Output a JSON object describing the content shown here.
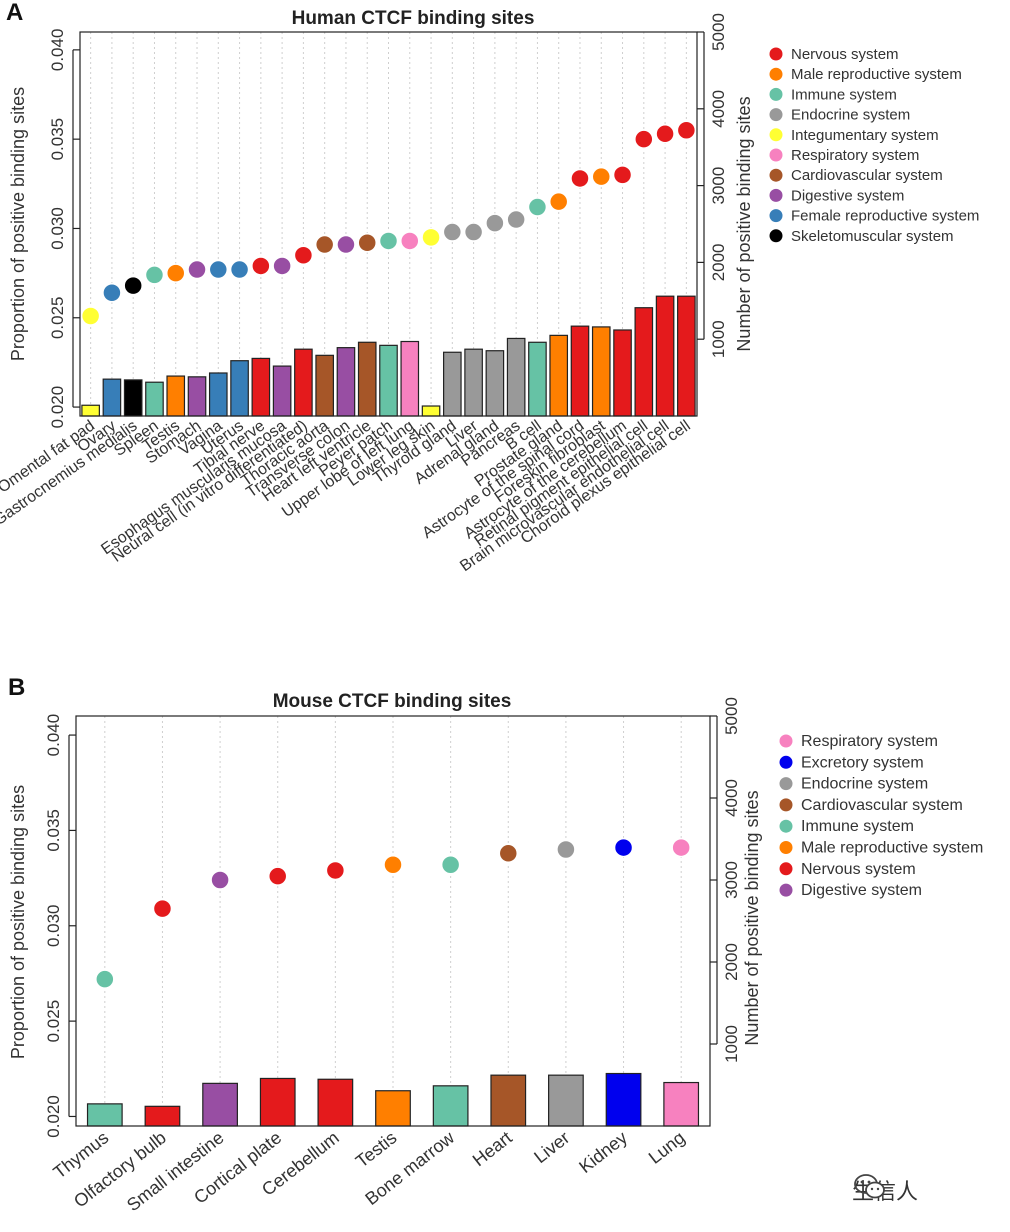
{
  "chart_data": [
    {
      "type": "scatter+bar",
      "panel_label": "A",
      "title": "Human CTCF binding sites",
      "ylabel_left": "Proportion of positive binding sites",
      "ylabel_right": "Number of positive binding sites",
      "ylim_left": [
        0.0195,
        0.041
      ],
      "yticks_left": [
        "0.020",
        "0.025",
        "0.030",
        "0.035",
        "0.040"
      ],
      "ylim_right": [
        0,
        5000
      ],
      "yticks_right": [
        "1000",
        "2000",
        "3000",
        "4000",
        "5000"
      ],
      "categories": [
        "Omental fat pad",
        "Ovary",
        "Gastrocnemius medialis",
        "Spleen",
        "Testis",
        "Stomach",
        "Vagina",
        "Uterus",
        "Tibial nerve",
        "Esophagus muscularis mucosa",
        "Neural cell (in vitro differentiated)",
        "Thoracic aorta",
        "Transverse colon",
        "Heart left ventricle",
        "Peyer patch",
        "Upper lobe of left lung",
        "Lower leg skin",
        "Thyroid gland",
        "Liver",
        "Adrenal gland",
        "Pancreas",
        "B cell",
        "Prostate gland",
        "Astrocyte of the spinal cord",
        "Foreskin fibroblast",
        "Astrocyte of the cerebellum",
        "Retinal pigment epithelial cell",
        "Brain microvascular endothelial cell",
        "Choroid plexus epithelial cell"
      ],
      "proportion": [
        0.0251,
        0.0264,
        0.0268,
        0.0274,
        0.0275,
        0.0277,
        0.0277,
        0.0277,
        0.0279,
        0.0279,
        0.0285,
        0.0291,
        0.0291,
        0.0292,
        0.0293,
        0.0293,
        0.0295,
        0.0298,
        0.0298,
        0.0303,
        0.0305,
        0.0312,
        0.0315,
        0.0328,
        0.0329,
        0.033,
        0.035,
        0.0353,
        0.0355
      ],
      "counts": [
        140,
        480,
        470,
        440,
        520,
        510,
        560,
        720,
        750,
        650,
        870,
        790,
        890,
        960,
        920,
        970,
        130,
        830,
        870,
        850,
        1010,
        960,
        1050,
        1170,
        1160,
        1120,
        1410,
        1560,
        1560
      ],
      "systems": [
        "Integumentary system",
        "Female reproductive system",
        "Skeletomuscular system",
        "Immune system",
        "Male reproductive system",
        "Digestive system",
        "Female reproductive system",
        "Female reproductive system",
        "Nervous system",
        "Digestive system",
        "Nervous system",
        "Cardiovascular system",
        "Digestive system",
        "Cardiovascular system",
        "Immune system",
        "Respiratory system",
        "Integumentary system",
        "Endocrine system",
        "Endocrine system",
        "Endocrine system",
        "Endocrine system",
        "Immune system",
        "Male reproductive system",
        "Nervous system",
        "Male reproductive system",
        "Nervous system",
        "Nervous system",
        "Nervous system",
        "Nervous system"
      ],
      "legend": [
        {
          "label": "Nervous system",
          "color": "#e41a1c"
        },
        {
          "label": "Male reproductive system",
          "color": "#ff7f00"
        },
        {
          "label": "Immune system",
          "color": "#66c2a5"
        },
        {
          "label": "Endocrine system",
          "color": "#999999"
        },
        {
          "label": "Integumentary system",
          "color": "#ffff33"
        },
        {
          "label": "Respiratory system",
          "color": "#f781bf"
        },
        {
          "label": "Cardiovascular system",
          "color": "#a65628"
        },
        {
          "label": "Digestive system",
          "color": "#984ea3"
        },
        {
          "label": "Female reproductive system",
          "color": "#377eb8"
        },
        {
          "label": "Skeletomuscular system",
          "color": "#000000"
        }
      ],
      "legend_position": "right"
    },
    {
      "type": "scatter+bar",
      "panel_label": "B",
      "title": "Mouse CTCF binding sites",
      "ylabel_left": "Proportion of positive binding sites",
      "ylabel_right": "Number of positive binding sites",
      "ylim_left": [
        0.0195,
        0.041
      ],
      "yticks_left": [
        "0.020",
        "0.025",
        "0.030",
        "0.035",
        "0.040"
      ],
      "ylim_right": [
        0,
        5000
      ],
      "yticks_right": [
        "1000",
        "2000",
        "3000",
        "4000",
        "5000"
      ],
      "categories": [
        "Thymus",
        "Olfactory bulb",
        "Small intestine",
        "Cortical plate",
        "Cerebellum",
        "Testis",
        "Bone marrow",
        "Heart",
        "Liver",
        "Kidney",
        "Lung"
      ],
      "proportion": [
        0.0272,
        0.0309,
        0.0324,
        0.0326,
        0.0329,
        0.0332,
        0.0332,
        0.0338,
        0.034,
        0.0341,
        0.0341
      ],
      "counts": [
        270,
        240,
        520,
        580,
        570,
        430,
        490,
        620,
        620,
        640,
        530
      ],
      "systems": [
        "Immune system",
        "Nervous system",
        "Digestive system",
        "Nervous system",
        "Nervous system",
        "Male reproductive system",
        "Immune system",
        "Cardiovascular system",
        "Endocrine system",
        "Excretory system",
        "Respiratory system"
      ],
      "legend": [
        {
          "label": "Respiratory system",
          "color": "#f781bf"
        },
        {
          "label": "Excretory system",
          "color": "#0000ee"
        },
        {
          "label": "Endocrine system",
          "color": "#999999"
        },
        {
          "label": "Cardiovascular system",
          "color": "#a65628"
        },
        {
          "label": "Immune system",
          "color": "#66c2a5"
        },
        {
          "label": "Male reproductive system",
          "color": "#ff7f00"
        },
        {
          "label": "Nervous system",
          "color": "#e41a1c"
        },
        {
          "label": "Digestive system",
          "color": "#984ea3"
        }
      ],
      "legend_position": "right"
    }
  ],
  "watermark": {
    "text": "生信人",
    "icon": "wechat-icon"
  }
}
